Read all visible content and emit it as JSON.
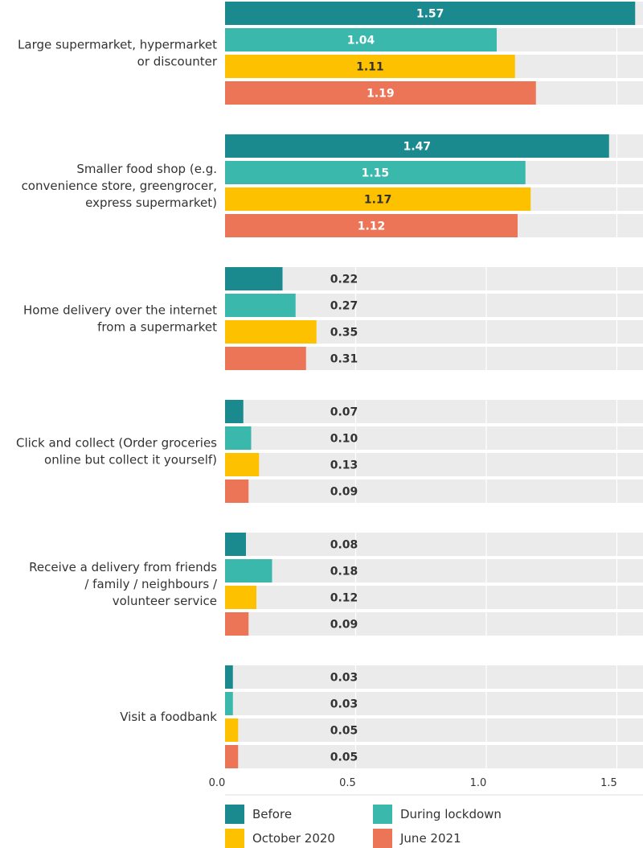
{
  "chart_data": {
    "type": "bar",
    "orientation": "horizontal",
    "categories": [
      [
        "Large supermarket, hypermarket",
        "or discounter"
      ],
      [
        "Smaller food shop (e.g.",
        "convenience store, greengrocer,",
        "express supermarket)"
      ],
      [
        "Home delivery over the internet",
        "from a supermarket"
      ],
      [
        "Click and collect (Order groceries",
        "online but collect it yourself)"
      ],
      [
        "Receive a delivery from friends",
        "/ family / neighbours /",
        "volunteer service"
      ],
      [
        "Visit a foodbank"
      ]
    ],
    "series": [
      {
        "name": "Before",
        "color": "#1a8a8f",
        "values": [
          1.57,
          1.47,
          0.22,
          0.07,
          0.08,
          0.03
        ],
        "labels": [
          "1.57",
          "1.47",
          "0.22",
          "0.07",
          "0.08",
          "0.03"
        ]
      },
      {
        "name": "During lockdown",
        "color": "#3bb8ac",
        "values": [
          1.04,
          1.15,
          0.27,
          0.1,
          0.18,
          0.03
        ],
        "labels": [
          "1.04",
          "1.15",
          "0.27",
          "0.10",
          "0.18",
          "0.03"
        ]
      },
      {
        "name": "October 2020",
        "color": "#fdc100",
        "values": [
          1.11,
          1.17,
          0.35,
          0.13,
          0.12,
          0.05
        ],
        "labels": [
          "1.11",
          "1.17",
          "0.35",
          "0.13",
          "0.12",
          "0.05"
        ]
      },
      {
        "name": "June 2021",
        "color": "#ec7558",
        "values": [
          1.19,
          1.12,
          0.31,
          0.09,
          0.09,
          0.05
        ],
        "labels": [
          "1.19",
          "1.12",
          "0.31",
          "0.09",
          "0.09",
          "0.05"
        ]
      }
    ],
    "xlim": [
      0,
      1.6
    ],
    "xticks": [
      0,
      0.5,
      1.0,
      1.5
    ],
    "xtick_labels": [
      "0.0",
      "0.5",
      "1.0",
      "1.5"
    ],
    "grid": true,
    "legend_position": "bottom",
    "xlabel": "",
    "ylabel": "",
    "title": ""
  }
}
